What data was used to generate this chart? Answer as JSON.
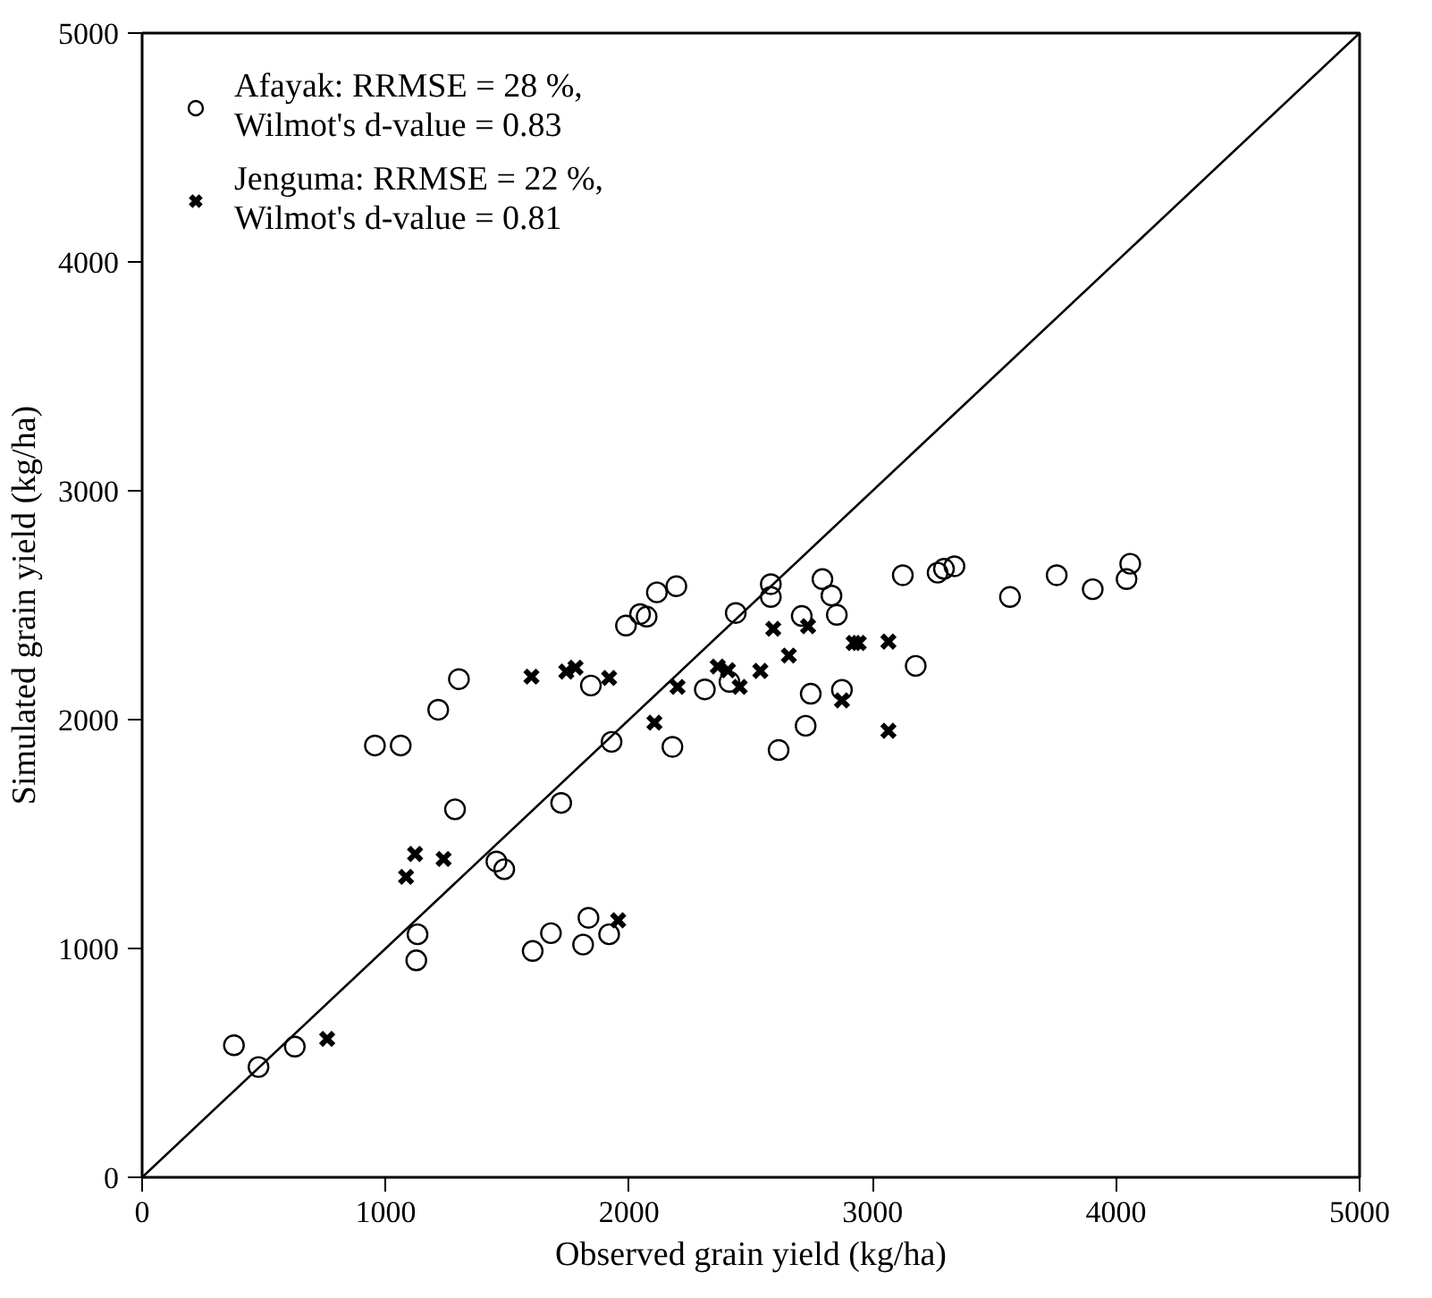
{
  "chart_data": {
    "type": "scatter",
    "xlabel": "Observed grain yield (kg/ha)",
    "ylabel": "Simulated grain yield (kg/ha)",
    "xlim": [
      0,
      5000
    ],
    "ylim": [
      0,
      5000
    ],
    "xticks": [
      0,
      1000,
      2000,
      3000,
      4000,
      5000
    ],
    "yticks": [
      0,
      1000,
      2000,
      3000,
      4000,
      5000
    ],
    "grid": false,
    "legend": "top left",
    "series": [
      {
        "name": "Afayak: RRMSE = 28 %,\nWilmot's d-value = 0.83",
        "color": "#000000",
        "marker": "circle",
        "x": [
          377,
          478,
          627,
          956,
          1062,
          1216,
          1301,
          1285,
          1131,
          1126,
          1455,
          1487,
          1721,
          1604,
          1679,
          1811,
          1833,
          1918,
          1928,
          1843,
          1987,
          2045,
          2072,
          2114,
          2194,
          2178,
          2311,
          2438,
          2412,
          2582,
          2582,
          2794,
          2831,
          2853,
          2709,
          2746,
          2725,
          2614,
          2874,
          3124,
          3267,
          3293,
          3336,
          3177,
          3564,
          3756,
          3904,
          4043,
          4058
        ],
        "values": [
          577,
          482,
          571,
          1887,
          1887,
          2043,
          2177,
          1608,
          1062,
          948,
          1380,
          1346,
          1636,
          989,
          1067,
          1017,
          1134,
          1062,
          1903,
          2149,
          2411,
          2461,
          2450,
          2556,
          2583,
          1881,
          2132,
          2466,
          2165,
          2592,
          2536,
          2614,
          2542,
          2458,
          2453,
          2113,
          1973,
          1867,
          2130,
          2631,
          2642,
          2659,
          2670,
          2235,
          2536,
          2631,
          2570,
          2614,
          2681
        ]
      },
      {
        "name": "Jenguma: RRMSE = 22 %,\nWilmot's d-value = 0.81",
        "color": "#000000",
        "marker": "cross",
        "x": [
          760,
          1084,
          1121,
          1238,
          1599,
          1742,
          1780,
          1918,
          1955,
          2104,
          2199,
          2364,
          2406,
          2454,
          2539,
          2592,
          2656,
          2735,
          2874,
          2922,
          2943,
          3065,
          3065
        ],
        "values": [
          605,
          1313,
          1413,
          1391,
          2188,
          2210,
          2227,
          2182,
          1123,
          1987,
          2143,
          2232,
          2216,
          2143,
          2213,
          2397,
          2280,
          2408,
          2084,
          2335,
          2335,
          2341,
          1951
        ]
      },
      {
        "type": "line",
        "color": "#000000",
        "x": [
          0,
          5000
        ],
        "values": [
          0,
          5000
        ]
      }
    ]
  }
}
